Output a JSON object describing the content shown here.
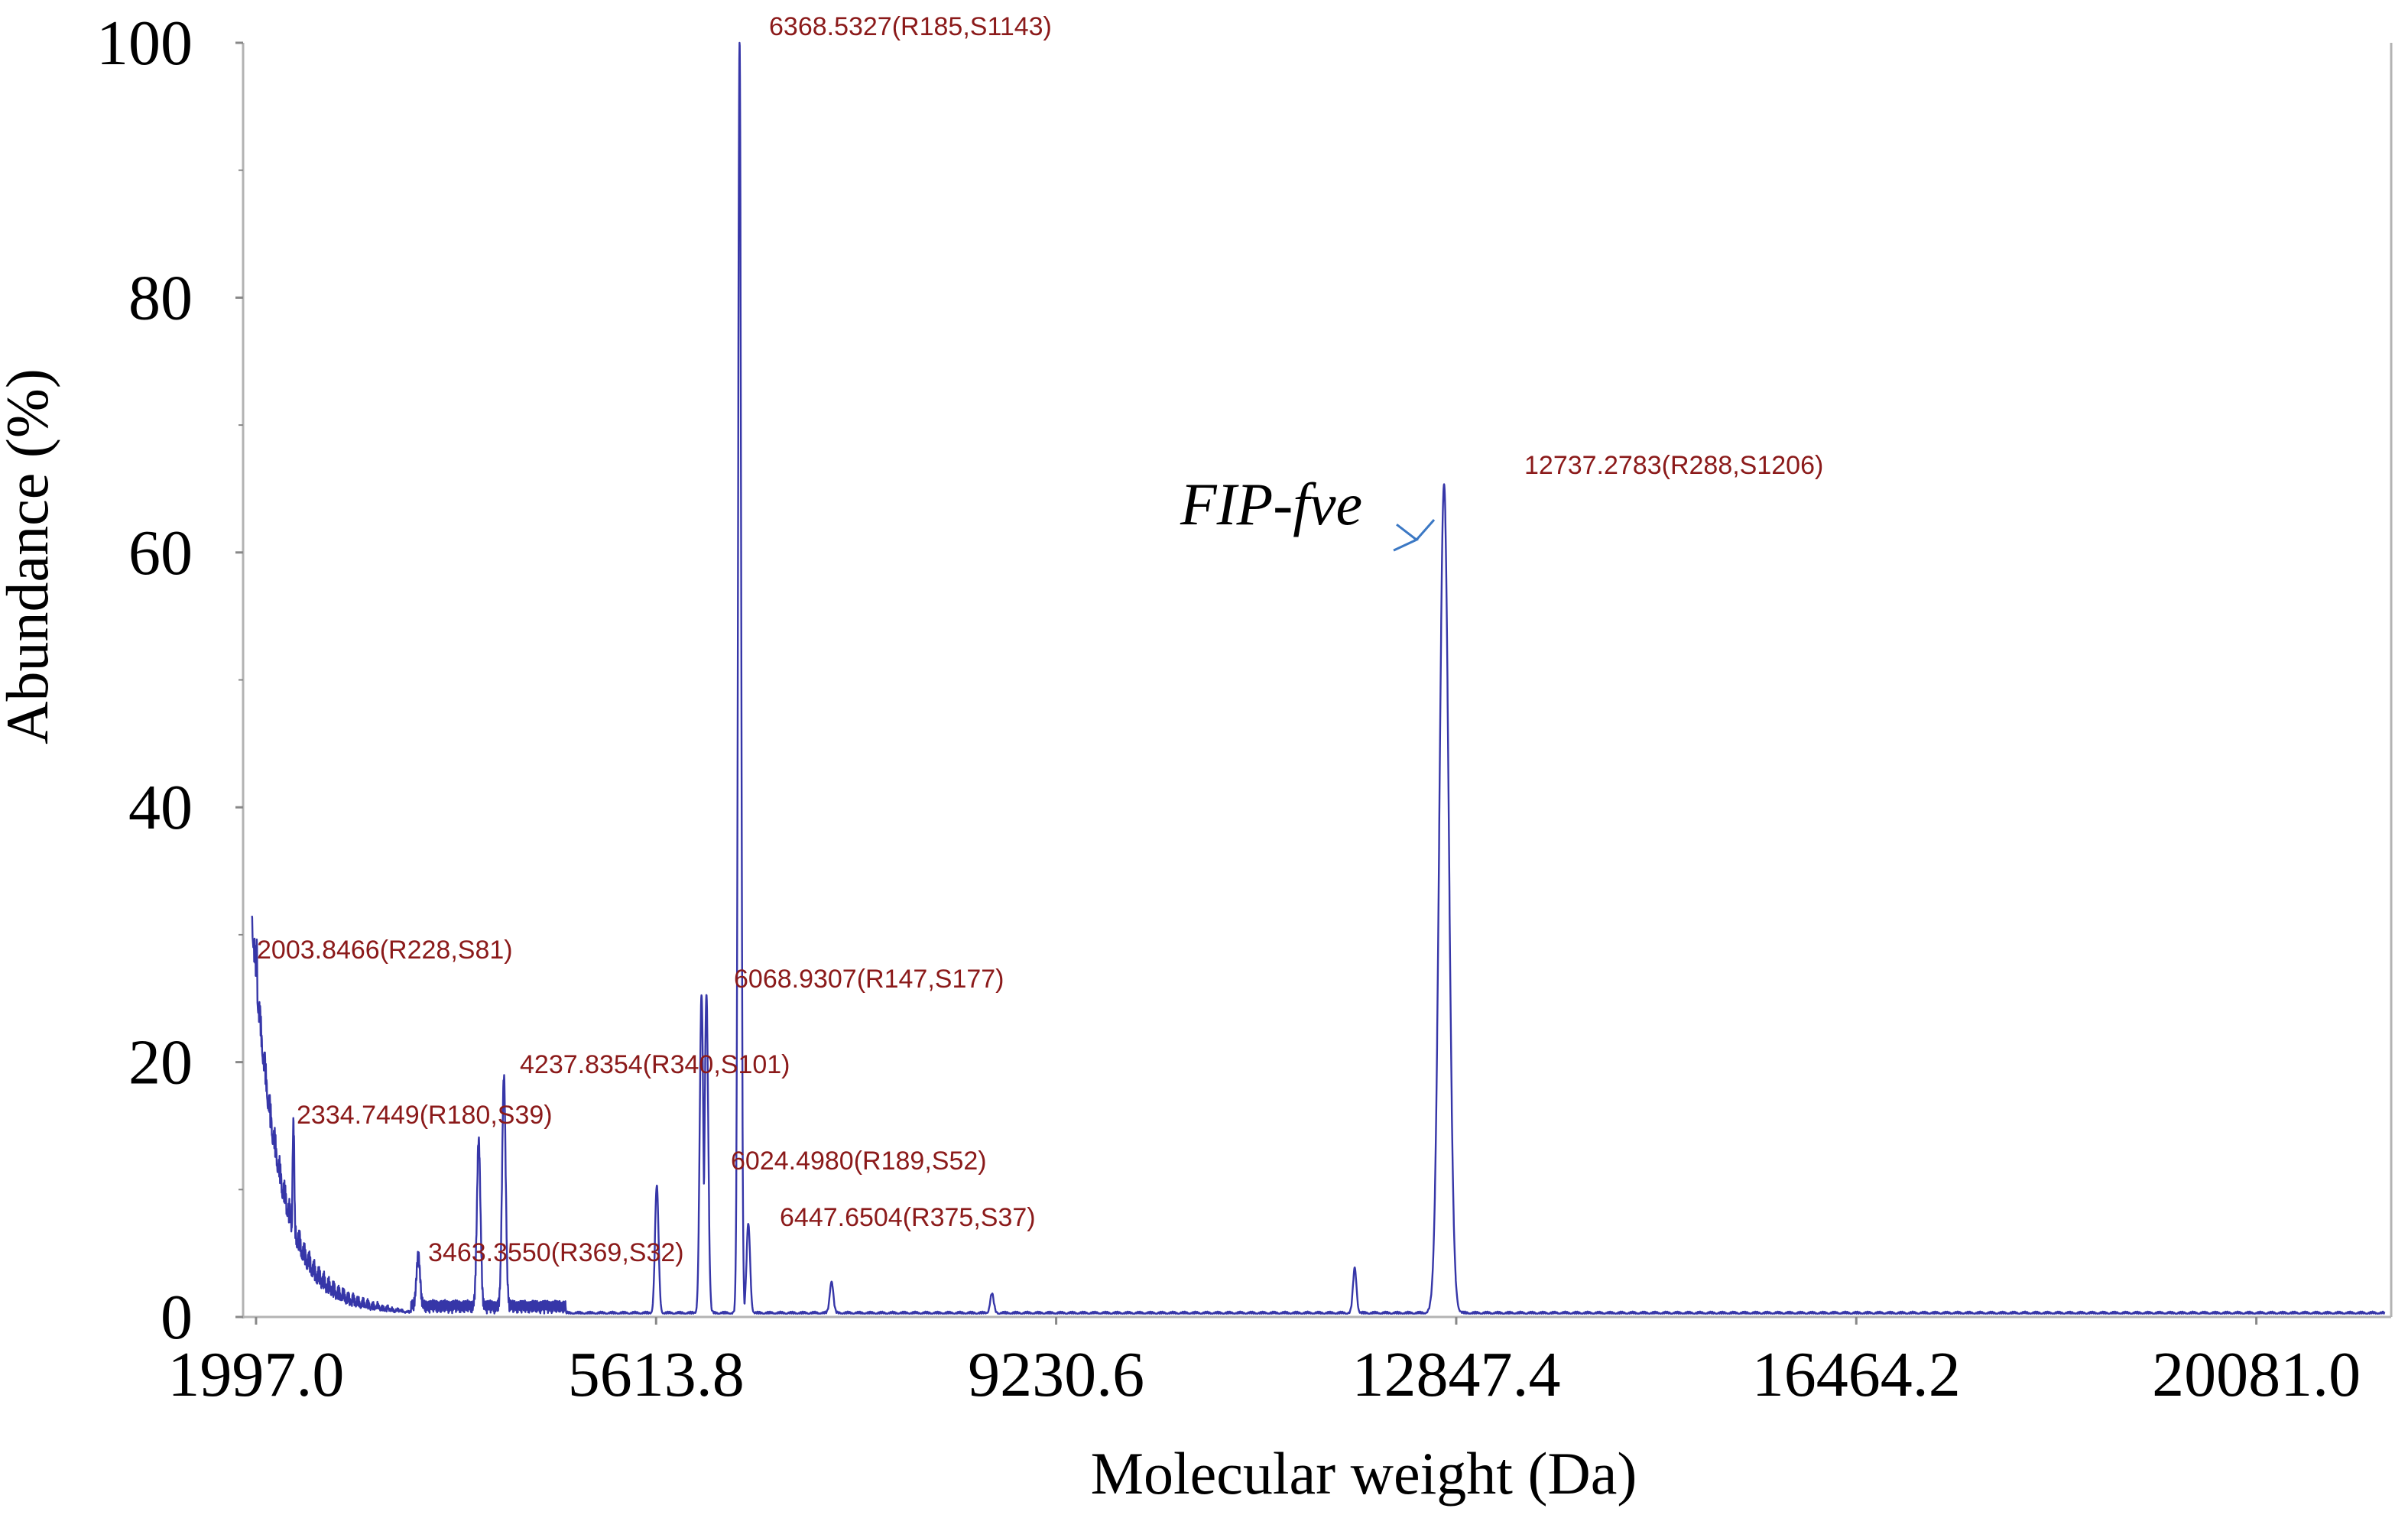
{
  "chart_data": {
    "type": "line",
    "xlabel": "Molecular weight (Da)",
    "ylabel": "Abundance (%)",
    "x_tick_labels": [
      "1997.0",
      "5613.8",
      "9230.6",
      "12847.4",
      "16464.2",
      "20081.0"
    ],
    "y_tick_labels": [
      "0",
      "20",
      "40",
      "60",
      "80",
      "100"
    ],
    "xlim": [
      1880,
      21300
    ],
    "ylim": [
      0,
      100
    ],
    "grid": false,
    "peaks": [
      {
        "x": 2003.8466,
        "y": 28,
        "label": "2003.8466(R228,S81)"
      },
      {
        "x": 2334.7449,
        "y": 14,
        "label": "2334.7449(R180,S39)"
      },
      {
        "x": 4010,
        "y": 13,
        "label": ""
      },
      {
        "x": 4237.8354,
        "y": 18,
        "label": "4237.8354(R340,S101)"
      },
      {
        "x": 5620,
        "y": 10,
        "label": ""
      },
      {
        "x": 6024.498,
        "y": 25,
        "label": "6024.4980(R189,S52)"
      },
      {
        "x": 6068.9307,
        "y": 25,
        "label": "6068.9307(R147,S177)"
      },
      {
        "x": 6368.5327,
        "y": 100,
        "label": "6368.5327(R185,S1143)"
      },
      {
        "x": 6447.6504,
        "y": 7,
        "label": "6447.6504(R375,S37)"
      },
      {
        "x": 7200,
        "y": 2.5,
        "label": ""
      },
      {
        "x": 8650,
        "y": 1.5,
        "label": ""
      },
      {
        "x": 11930,
        "y": 3.5,
        "label": ""
      },
      {
        "x": 12737.2783,
        "y": 65,
        "label": "12737.2783(R288,S1206)"
      },
      {
        "x": 3463.355,
        "y": 4,
        "label": "3463.3550(R369,S32)"
      }
    ],
    "annotation": {
      "text": "FIP-fve",
      "target_x": 12737.2783,
      "target_y": 61
    }
  }
}
